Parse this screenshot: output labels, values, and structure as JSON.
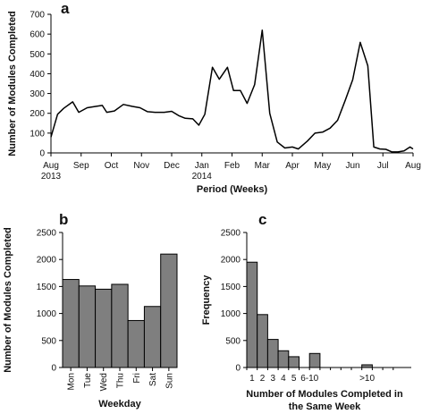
{
  "chart_data": [
    {
      "panel": "a",
      "type": "line",
      "xlabel": "Period (Weeks)",
      "ylabel": "Number of Modules Completed",
      "ylim": [
        0,
        700
      ],
      "yticks": [
        0,
        100,
        200,
        300,
        400,
        500,
        600,
        700
      ],
      "xtick_labels": [
        {
          "lines": [
            "Aug",
            "2013"
          ]
        },
        {
          "lines": [
            "Sep"
          ]
        },
        {
          "lines": [
            "Oct"
          ]
        },
        {
          "lines": [
            "Nov"
          ]
        },
        {
          "lines": [
            "Dec"
          ]
        },
        {
          "lines": [
            "Jan",
            "2014"
          ]
        },
        {
          "lines": [
            "Feb"
          ]
        },
        {
          "lines": [
            "Mar"
          ]
        },
        {
          "lines": [
            "Apr"
          ]
        },
        {
          "lines": [
            "May"
          ]
        },
        {
          "lines": [
            "Jun"
          ]
        },
        {
          "lines": [
            "Jul"
          ]
        },
        {
          "lines": [
            "Aug"
          ]
        }
      ],
      "xlim": [
        0,
        12
      ],
      "grid": false,
      "color": "#000000",
      "points": [
        [
          0.0,
          80
        ],
        [
          0.22,
          195
        ],
        [
          0.42,
          225
        ],
        [
          0.72,
          258
        ],
        [
          0.92,
          205
        ],
        [
          1.2,
          228
        ],
        [
          1.48,
          235
        ],
        [
          1.7,
          240
        ],
        [
          1.85,
          205
        ],
        [
          2.1,
          212
        ],
        [
          2.4,
          245
        ],
        [
          2.7,
          235
        ],
        [
          2.95,
          228
        ],
        [
          3.2,
          208
        ],
        [
          3.45,
          205
        ],
        [
          3.75,
          205
        ],
        [
          4.0,
          210
        ],
        [
          4.25,
          187
        ],
        [
          4.45,
          175
        ],
        [
          4.7,
          172
        ],
        [
          4.9,
          140
        ],
        [
          5.1,
          195
        ],
        [
          5.35,
          432
        ],
        [
          5.58,
          372
        ],
        [
          5.85,
          432
        ],
        [
          6.05,
          315
        ],
        [
          6.28,
          315
        ],
        [
          6.5,
          250
        ],
        [
          6.75,
          345
        ],
        [
          7.0,
          620
        ],
        [
          7.25,
          200
        ],
        [
          7.5,
          55
        ],
        [
          7.75,
          25
        ],
        [
          8.0,
          30
        ],
        [
          8.2,
          20
        ],
        [
          8.5,
          60
        ],
        [
          8.75,
          100
        ],
        [
          9.0,
          105
        ],
        [
          9.25,
          125
        ],
        [
          9.5,
          165
        ],
        [
          9.75,
          265
        ],
        [
          10.0,
          370
        ],
        [
          10.25,
          558
        ],
        [
          10.5,
          440
        ],
        [
          10.7,
          30
        ],
        [
          10.9,
          20
        ],
        [
          11.1,
          18
        ],
        [
          11.3,
          5
        ],
        [
          11.5,
          5
        ],
        [
          11.7,
          10
        ],
        [
          11.9,
          30
        ],
        [
          12.0,
          20
        ]
      ]
    },
    {
      "panel": "b",
      "type": "bar",
      "xlabel": "Weekday",
      "ylabel": "Number of Modules Completed",
      "ylim": [
        0,
        2500
      ],
      "yticks": [
        0,
        500,
        1000,
        1500,
        2000,
        2500
      ],
      "categories": [
        "Mon",
        "Tue",
        "Wed",
        "Thu",
        "Fri",
        "Sat",
        "Sun"
      ],
      "values": [
        1630,
        1510,
        1450,
        1540,
        870,
        1130,
        2100
      ],
      "bar_color": "#7f7f7f",
      "grid": false
    },
    {
      "panel": "c",
      "type": "bar",
      "xlabel": "Number of Modules Completed in the Same Week",
      "xlabel_lines": [
        "Number of Modules Completed in",
        "the Same Week"
      ],
      "ylabel": "Frequency",
      "ylim": [
        0,
        2500
      ],
      "yticks": [
        0,
        500,
        1000,
        1500,
        2000,
        2500
      ],
      "categories": [
        "1",
        "2",
        "3",
        "4",
        "5",
        "6-10",
        "",
        "",
        "",
        "",
        "",
        ">10",
        "",
        ""
      ],
      "values": [
        1950,
        980,
        520,
        310,
        200,
        0,
        260,
        0,
        0,
        0,
        0,
        50,
        0,
        0
      ],
      "tick_labels": [
        {
          "text": "1",
          "index": 0
        },
        {
          "text": "2",
          "index": 1
        },
        {
          "text": "3",
          "index": 2
        },
        {
          "text": "4",
          "index": 3
        },
        {
          "text": "5",
          "index": 4
        },
        {
          "text": "6-10",
          "index": 5.5
        },
        {
          "text": ">10",
          "index": 11
        }
      ],
      "bar_color": "#7f7f7f",
      "grid": false
    }
  ]
}
